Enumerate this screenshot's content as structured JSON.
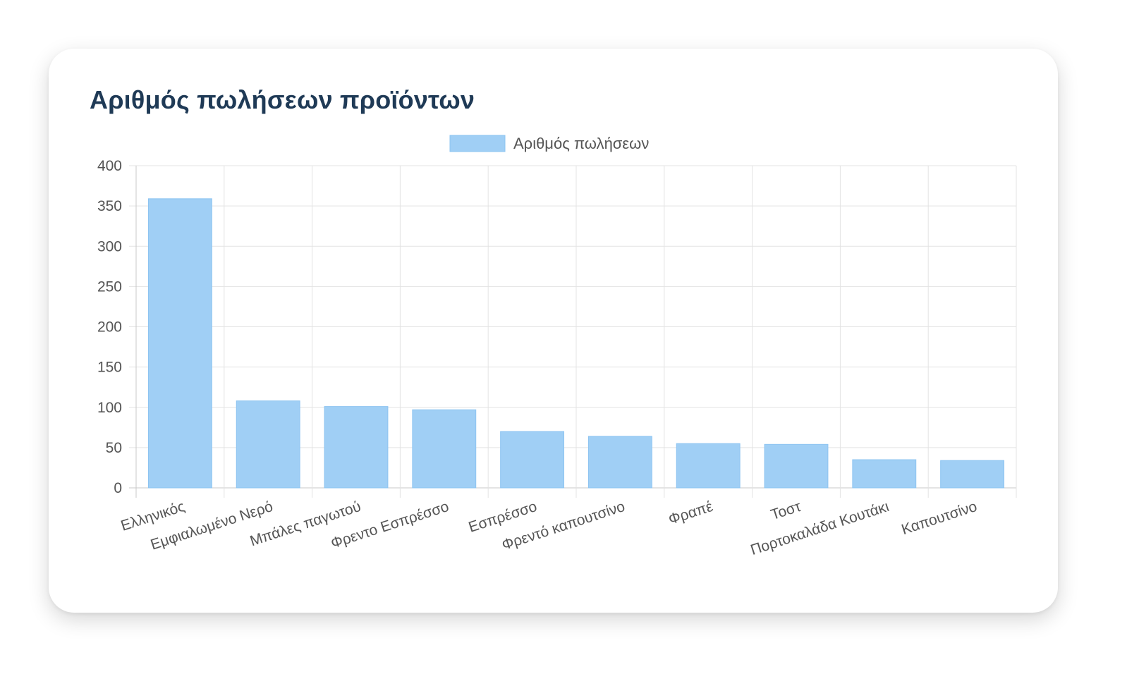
{
  "card": {
    "title": "Αριθμός πωλήσεων προϊόντων"
  },
  "chart_data": {
    "type": "bar",
    "categories": [
      "Ελληνικός",
      "Εμφιαλωμένο Νερό",
      "Μπάλες παγωτού",
      "Φρεντο Εσπρέσσο",
      "Εσπρέσσο",
      "Φρεντό καπουτσίνο",
      "Φραπέ",
      "Τοστ",
      "Πορτοκαλάδα Κουτάκι",
      "Καπουτσίνο"
    ],
    "series": [
      {
        "name": "Αριθμός πωλήσεων",
        "values": [
          359,
          108,
          101,
          97,
          70,
          64,
          55,
          54,
          35,
          34
        ],
        "color": "#a0cff5",
        "border_color": "#8dc4f1"
      }
    ],
    "ylim": [
      0,
      400
    ],
    "yticks": [
      0,
      50,
      100,
      150,
      200,
      250,
      300,
      350,
      400
    ],
    "grid": true,
    "legend": "top-center",
    "xlabel": "",
    "ylabel": ""
  }
}
